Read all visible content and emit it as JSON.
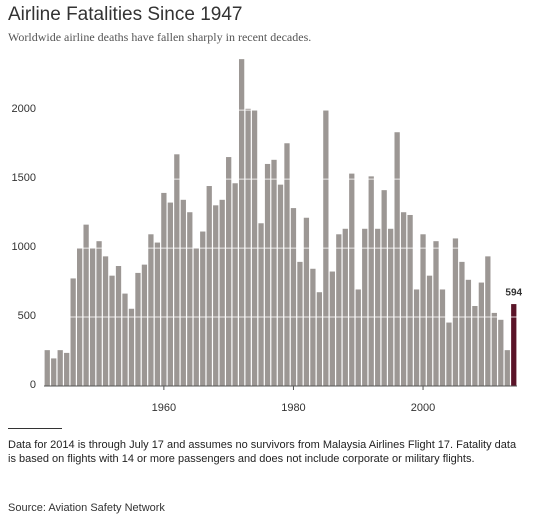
{
  "chart_data": {
    "type": "bar",
    "title": "Airline Fatalities Since 1947",
    "subtitle": "Worldwide airline deaths have fallen sharply in recent decades.",
    "x": [
      1942,
      1943,
      1944,
      1945,
      1946,
      1947,
      1948,
      1949,
      1950,
      1951,
      1952,
      1953,
      1954,
      1955,
      1956,
      1957,
      1958,
      1959,
      1960,
      1961,
      1962,
      1963,
      1964,
      1965,
      1966,
      1967,
      1968,
      1969,
      1970,
      1971,
      1972,
      1973,
      1974,
      1975,
      1976,
      1977,
      1978,
      1979,
      1980,
      1981,
      1982,
      1983,
      1984,
      1985,
      1986,
      1987,
      1988,
      1989,
      1990,
      1991,
      1992,
      1993,
      1994,
      1995,
      1996,
      1997,
      1998,
      1999,
      2000,
      2001,
      2002,
      2003,
      2004,
      2005,
      2006,
      2007,
      2008,
      2009,
      2010,
      2011,
      2012,
      2013,
      2014
    ],
    "values": [
      260,
      200,
      260,
      240,
      780,
      1000,
      1170,
      1000,
      1050,
      940,
      800,
      870,
      670,
      560,
      820,
      880,
      1100,
      1040,
      1400,
      1330,
      1680,
      1350,
      1260,
      1000,
      1120,
      1450,
      1310,
      1350,
      1660,
      1470,
      2370,
      2010,
      2000,
      1180,
      1610,
      1640,
      1460,
      1760,
      1290,
      900,
      1220,
      850,
      680,
      2000,
      830,
      1100,
      1140,
      1540,
      700,
      1140,
      1520,
      1140,
      1420,
      1140,
      1840,
      1260,
      1240,
      700,
      1100,
      800,
      1050,
      700,
      460,
      1070,
      900,
      770,
      580,
      750,
      940,
      530,
      480,
      260,
      594
    ],
    "color": "#9c9794",
    "highlight_color": "#5a1428",
    "labeled": [
      2014
    ],
    "xlim": [
      1941.5,
      2014.5
    ],
    "xticks": [
      1960,
      1980,
      2000
    ],
    "ylim": [
      0,
      2400
    ],
    "yticks": [
      0,
      500,
      1000,
      1500,
      2000
    ],
    "grid": true,
    "note": "Data for 2014 is through July 17 and assumes no survivors from Malaysia Airlines Flight 17. Fatality data is based on flights with 14 or more passengers and does not include corporate or military flights.",
    "source": "Source: Aviation Safety Network"
  }
}
